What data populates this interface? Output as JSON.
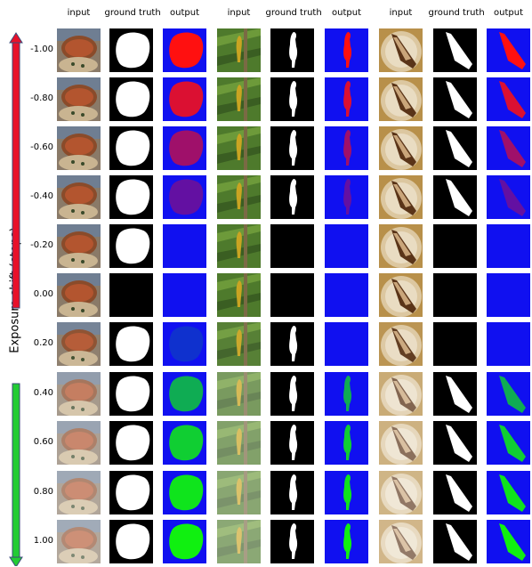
{
  "headers": [
    "input",
    "ground truth",
    "output",
    "input",
    "ground truth",
    "output",
    "input",
    "ground truth",
    "output"
  ],
  "y_axis_label": "Exposure shift (stops)",
  "rows": [
    {
      "label": "-1.00",
      "gt": [
        true,
        true,
        true
      ],
      "out": [
        "red",
        "red",
        "red"
      ],
      "strength": 1.0
    },
    {
      "label": "-0.80",
      "gt": [
        true,
        true,
        true
      ],
      "out": [
        "red",
        "red",
        "red"
      ],
      "strength": 0.85
    },
    {
      "label": "-0.60",
      "gt": [
        true,
        true,
        true
      ],
      "out": [
        "red",
        "red",
        "red"
      ],
      "strength": 0.6
    },
    {
      "label": "-0.40",
      "gt": [
        true,
        true,
        true
      ],
      "out": [
        "red",
        "red",
        "red"
      ],
      "strength": 0.35
    },
    {
      "label": "-0.20",
      "gt": [
        true,
        false,
        false
      ],
      "out": [
        "none",
        "none",
        "none"
      ],
      "strength": 0.1
    },
    {
      "label": "0.00",
      "gt": [
        false,
        false,
        false
      ],
      "out": [
        "none",
        "none",
        "none"
      ],
      "strength": 0.0
    },
    {
      "label": "0.20",
      "gt": [
        true,
        true,
        false
      ],
      "out": [
        "green",
        "none",
        "none"
      ],
      "strength": 0.15
    },
    {
      "label": "0.40",
      "gt": [
        true,
        true,
        true
      ],
      "out": [
        "green",
        "green",
        "green"
      ],
      "strength": 0.7
    },
    {
      "label": "0.60",
      "gt": [
        true,
        true,
        true
      ],
      "out": [
        "green",
        "green",
        "green"
      ],
      "strength": 0.85
    },
    {
      "label": "0.80",
      "gt": [
        true,
        true,
        true
      ],
      "out": [
        "green",
        "green",
        "green"
      ],
      "strength": 0.95
    },
    {
      "label": "1.00",
      "gt": [
        true,
        true,
        true
      ],
      "out": [
        "green",
        "green",
        "green"
      ],
      "strength": 1.0
    }
  ],
  "colors": {
    "arrow_red": "#e8102a",
    "arrow_green": "#22cc33",
    "arrow_border": "#3a4a7a",
    "output_background": "#1010f0",
    "output_red": "#ff1010",
    "output_green": "#10f010",
    "gt_background": "#000000",
    "gt_mask": "#ffffff"
  }
}
